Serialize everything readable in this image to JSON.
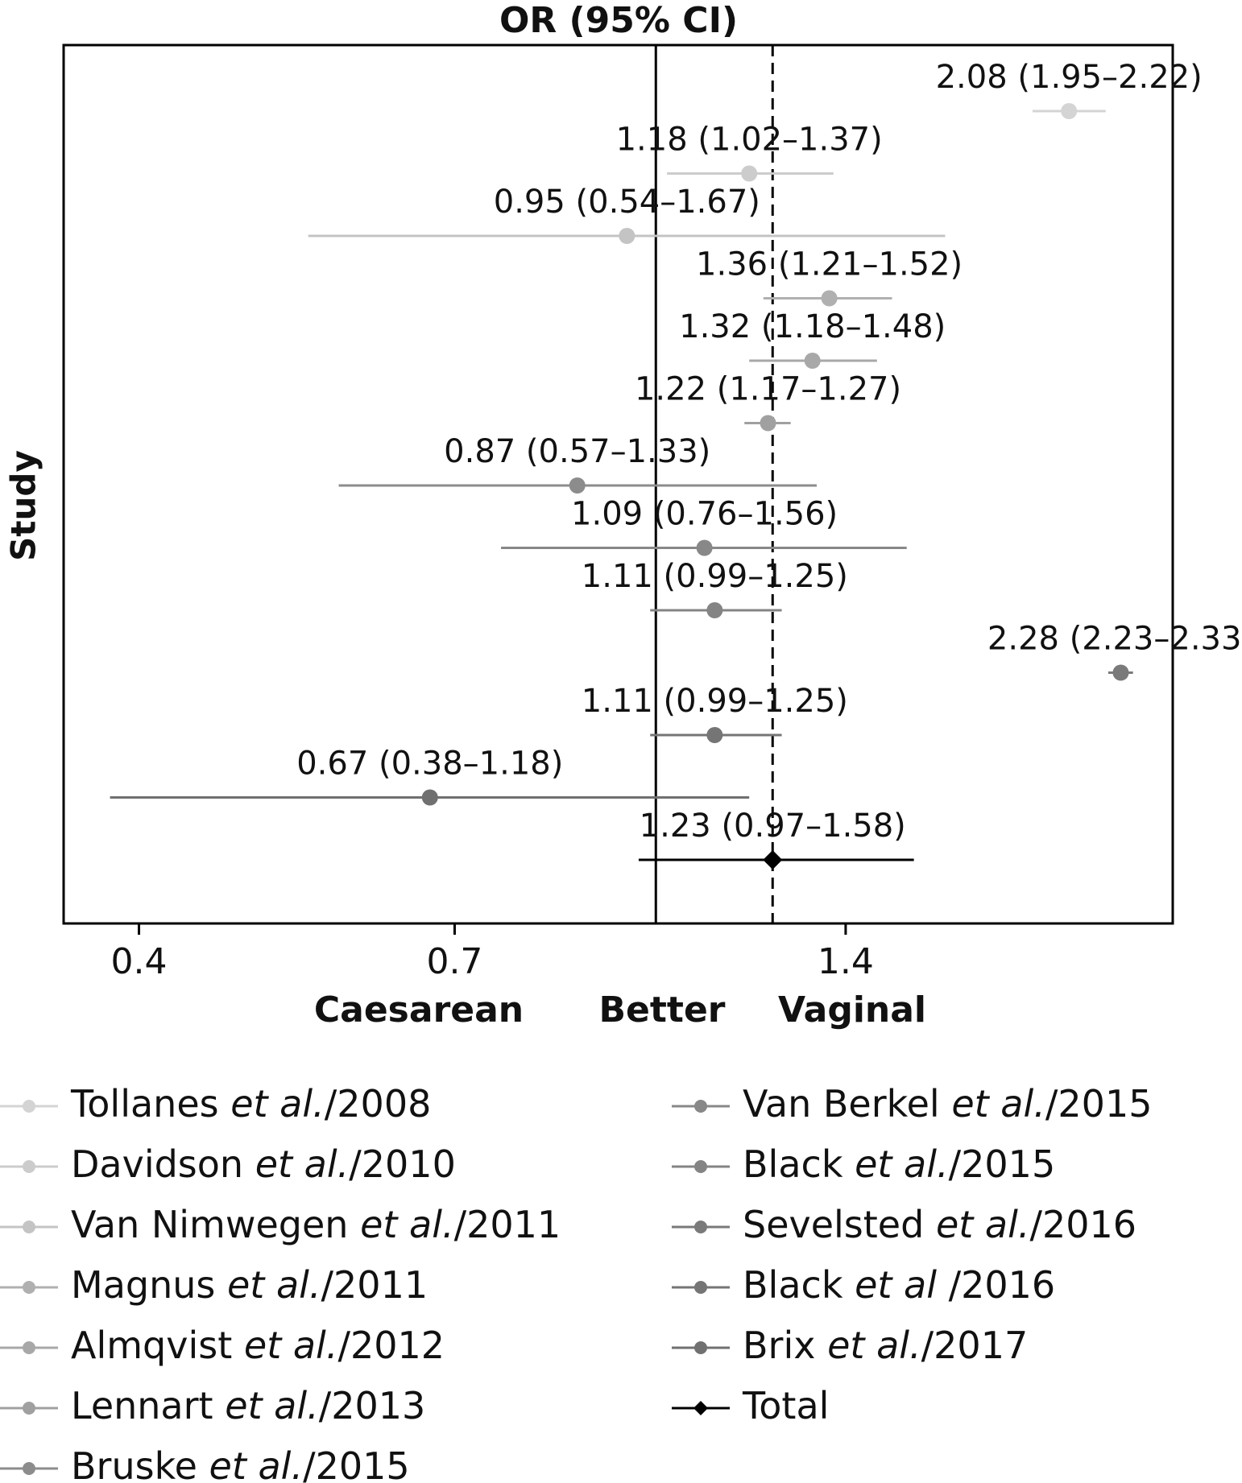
{
  "chart_data": {
    "type": "forest",
    "title": "OR (95% CI)",
    "y_label": "Study",
    "x_labels": [
      "Caesarean",
      "Better",
      "Vaginal"
    ],
    "xscale": "log",
    "xlim": [
      0.35,
      2.5
    ],
    "xticks": [
      0.4,
      0.7,
      1.4
    ],
    "reference_line": 1,
    "series": [
      {
        "name": "Tollanes et al./2008",
        "color": "#d4d4d4",
        "marker": "circle",
        "value": 2.08,
        "ci": [
          1.95,
          2.22
        ],
        "value_label": "2.08 (1.95–2.22)"
      },
      {
        "name": "Davidson et al./2010",
        "color": "#cccccc",
        "marker": "circle",
        "value": 1.18,
        "ci": [
          1.02,
          1.37
        ],
        "value_label": "1.18 (1.02–1.37)"
      },
      {
        "name": "Van Nimwegen et al./2011",
        "color": "#c4c4c4",
        "marker": "circle",
        "value": 0.95,
        "ci": [
          0.54,
          1.67
        ],
        "value_label": "0.95 (0.54–1.67)"
      },
      {
        "name": "Magnus et al./2011",
        "color": "#b0b0b0",
        "marker": "circle",
        "value": 1.36,
        "ci": [
          1.21,
          1.52
        ],
        "value_label": "1.36 (1.21–1.52)"
      },
      {
        "name": "Almqvist et al./2012",
        "color": "#a8a8a8",
        "marker": "circle",
        "value": 1.32,
        "ci": [
          1.18,
          1.48
        ],
        "value_label": "1.32 (1.18–1.48)"
      },
      {
        "name": "Lennart et al./2013",
        "color": "#a0a0a0",
        "marker": "circle",
        "value": 1.22,
        "ci": [
          1.17,
          1.27
        ],
        "value_label": "1.22 (1.17–1.27)"
      },
      {
        "name": "Bruske et al./2015",
        "color": "#8c8c8c",
        "marker": "circle",
        "value": 0.87,
        "ci": [
          0.57,
          1.33
        ],
        "value_label": "0.87 (0.57–1.33)"
      },
      {
        "name": "Van Berkel et al./2015",
        "color": "#888888",
        "marker": "circle",
        "value": 1.09,
        "ci": [
          0.76,
          1.56
        ],
        "value_label": "1.09 (0.76–1.56)"
      },
      {
        "name": "Black et al./2015",
        "color": "#848484",
        "marker": "circle",
        "value": 1.11,
        "ci": [
          0.99,
          1.25
        ],
        "value_label": "1.11 (0.99–1.25)"
      },
      {
        "name": "Sevelsted et al./2016",
        "color": "#7a7a7a",
        "marker": "circle",
        "value": 2.28,
        "ci": [
          2.23,
          2.33
        ],
        "value_label": "2.28 (2.23–2.33)"
      },
      {
        "name": "Black et al /2016",
        "color": "#757575",
        "marker": "circle",
        "value": 1.11,
        "ci": [
          0.99,
          1.25
        ],
        "value_label": "1.11 (0.99–1.25)"
      },
      {
        "name": "Brix et al./2017",
        "color": "#707070",
        "marker": "circle",
        "value": 0.67,
        "ci": [
          0.38,
          1.18
        ],
        "value_label": "0.67 (0.38–1.18)"
      },
      {
        "name": "Total",
        "color": "#000000",
        "marker": "diamond",
        "value": 1.23,
        "ci": [
          0.97,
          1.58
        ],
        "value_label": "1.23 (0.97–1.58)"
      }
    ]
  }
}
